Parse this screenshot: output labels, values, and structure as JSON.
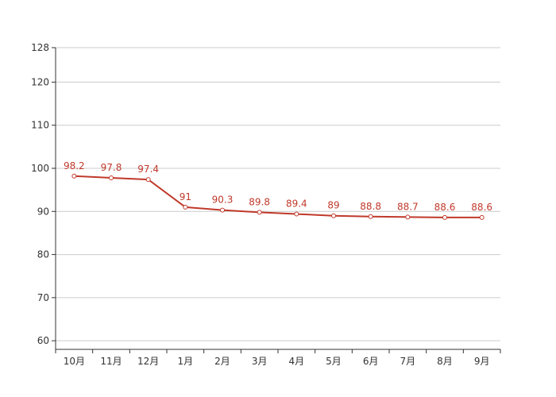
{
  "chart_data": {
    "type": "line",
    "categories": [
      "10月",
      "11月",
      "12月",
      "1月",
      "2月",
      "3月",
      "4月",
      "5月",
      "6月",
      "7月",
      "8月",
      "9月"
    ],
    "series": [
      {
        "values": [
          98.2,
          97.8,
          97.4,
          91,
          90.3,
          89.8,
          89.4,
          89,
          88.8,
          88.7,
          88.6,
          88.6
        ]
      }
    ],
    "ylim": [
      58,
      128
    ],
    "yticks": [
      60,
      70,
      80,
      90,
      100,
      110,
      120,
      128
    ],
    "grid": true,
    "legend": "none",
    "data_labels": true,
    "colors": {
      "line": "#c0392b",
      "grid": "#cccccc",
      "axis": "#333333",
      "point_fill": "#ffffff"
    }
  }
}
